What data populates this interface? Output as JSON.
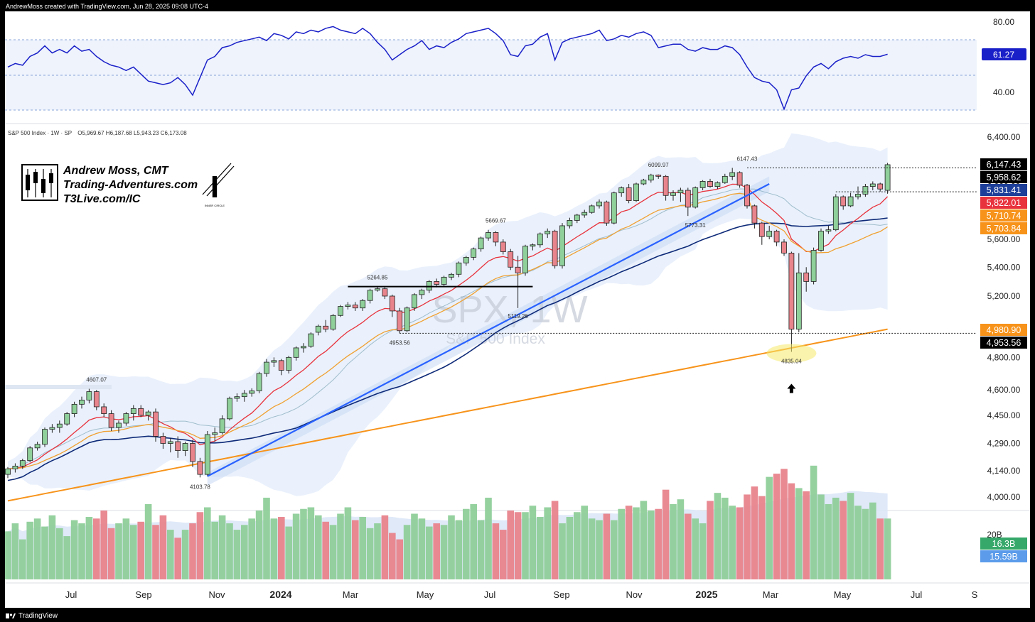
{
  "header": {
    "credit": "AndrewMoss created with TradingView.com, Jun 28, 2025 09:08 UTC-4"
  },
  "footer": {
    "brand": "TradingView"
  },
  "branding": {
    "name": "Andrew Moss, CMT",
    "site": "Trading-Adventures.com",
    "link": "T3Live.com/IC",
    "logo_caption": "INNER CIRCLE"
  },
  "symbol": {
    "ticker_watermark": "SPX, 1W",
    "name_watermark": "S&P 500 Index",
    "legend": "S&P 500 Index · 1W · SP",
    "ohlc": "O5,969.67  H6,187.68  L5,943.23  C6,173.08"
  },
  "colors": {
    "up": "#8fcf9a",
    "down": "#e8848c",
    "rsi_line": "#1a20c8",
    "ema_red": "#e8323c",
    "ema_orange": "#f0a030",
    "sma_navy": "#0e2a78",
    "sma200": "#f7931a",
    "trend": "#2962ff"
  },
  "chart_data": {
    "type": "candlestick",
    "timeframe": "1W",
    "price_axis": {
      "ticks": [
        "6,400.00",
        "6,000.00",
        "5,600.00",
        "5,400.00",
        "5,200.00",
        "4,800.00",
        "4,600.00",
        "4,450.00",
        "4,290.00",
        "4,140.00",
        "4,000.00"
      ],
      "scale": "log",
      "range": [
        3960,
        6500
      ]
    },
    "rsi_axis": {
      "ticks": [
        "80.00",
        "40.00"
      ],
      "range": [
        25,
        85
      ],
      "value": "61.27"
    },
    "volume_axis": {
      "ticks": [
        "20B"
      ]
    },
    "time_axis": [
      "Jul",
      "Sep",
      "Nov",
      "2024",
      "Mar",
      "May",
      "Jul",
      "Sep",
      "Nov",
      "2025",
      "Mar",
      "May",
      "Jul",
      "S"
    ],
    "bold_labels": [
      "2024",
      "2025"
    ],
    "price_labels": [
      {
        "text": "6,147.43",
        "bg": "#000000"
      },
      {
        "text": "5,958.62",
        "bg": "#000000"
      },
      {
        "text": "5,831.41",
        "bg": "#1d3f9a"
      },
      {
        "text": "5,822.01",
        "bg": "#e8323c"
      },
      {
        "text": "5,710.74",
        "bg": "#f7931a"
      },
      {
        "text": "5,703.84",
        "bg": "#f7931a"
      },
      {
        "text": "4,980.90",
        "bg": "#f7931a"
      },
      {
        "text": "4,953.56",
        "bg": "#000000"
      }
    ],
    "volume_labels": [
      {
        "text": "16.3B",
        "bg": "#36a86a"
      },
      {
        "text": "15.59B",
        "bg": "#5b9bea"
      }
    ],
    "annotations": [
      {
        "text": "4607.07",
        "value": 4607.07
      },
      {
        "text": "4103.78",
        "value": 4103.78
      },
      {
        "text": "5264.85",
        "value": 5264.85
      },
      {
        "text": "4953.56",
        "value": 4953.56
      },
      {
        "text": "5669.67",
        "value": 5669.67
      },
      {
        "text": "5119.26",
        "value": 5119.26
      },
      {
        "text": "6099.97",
        "value": 6099.97
      },
      {
        "text": "6147.43",
        "value": 6147.43
      },
      {
        "text": "5773.31",
        "value": 5773.31
      },
      {
        "text": "4835.04",
        "value": 4835.04
      }
    ],
    "candles": [
      [
        4120,
        4160,
        4100,
        4150
      ],
      [
        4150,
        4180,
        4130,
        4165
      ],
      [
        4165,
        4205,
        4150,
        4195
      ],
      [
        4195,
        4275,
        4185,
        4265
      ],
      [
        4265,
        4300,
        4250,
        4285
      ],
      [
        4285,
        4380,
        4270,
        4370
      ],
      [
        4370,
        4400,
        4350,
        4380
      ],
      [
        4380,
        4420,
        4350,
        4400
      ],
      [
        4400,
        4470,
        4390,
        4460
      ],
      [
        4460,
        4530,
        4440,
        4515
      ],
      [
        4515,
        4560,
        4490,
        4540
      ],
      [
        4540,
        4607.07,
        4520,
        4590
      ],
      [
        4590,
        4600,
        4480,
        4500
      ],
      [
        4500,
        4520,
        4440,
        4460
      ],
      [
        4460,
        4480,
        4360,
        4380
      ],
      [
        4380,
        4420,
        4350,
        4405
      ],
      [
        4405,
        4470,
        4390,
        4460
      ],
      [
        4460,
        4510,
        4420,
        4490
      ],
      [
        4490,
        4510,
        4440,
        4450
      ],
      [
        4450,
        4480,
        4420,
        4470
      ],
      [
        4470,
        4490,
        4300,
        4330
      ],
      [
        4330,
        4350,
        4260,
        4290
      ],
      [
        4290,
        4320,
        4240,
        4300
      ],
      [
        4300,
        4330,
        4210,
        4250
      ],
      [
        4250,
        4300,
        4220,
        4290
      ],
      [
        4290,
        4310,
        4160,
        4190
      ],
      [
        4190,
        4210,
        4103.78,
        4120
      ],
      [
        4120,
        4360,
        4110,
        4340
      ],
      [
        4340,
        4380,
        4300,
        4350
      ],
      [
        4350,
        4450,
        4340,
        4430
      ],
      [
        4430,
        4560,
        4420,
        4550
      ],
      [
        4550,
        4580,
        4530,
        4560
      ],
      [
        4560,
        4600,
        4530,
        4580
      ],
      [
        4580,
        4610,
        4560,
        4595
      ],
      [
        4595,
        4710,
        4580,
        4700
      ],
      [
        4700,
        4790,
        4680,
        4770
      ],
      [
        4770,
        4800,
        4740,
        4780
      ],
      [
        4780,
        4790,
        4690,
        4720
      ],
      [
        4720,
        4810,
        4700,
        4800
      ],
      [
        4800,
        4870,
        4780,
        4860
      ],
      [
        4860,
        4890,
        4830,
        4870
      ],
      [
        4870,
        4960,
        4860,
        4950
      ],
      [
        4960,
        5010,
        4940,
        5000
      ],
      [
        5000,
        5040,
        4960,
        4980
      ],
      [
        4980,
        5080,
        4970,
        5070
      ],
      [
        5070,
        5140,
        5060,
        5130
      ],
      [
        5130,
        5160,
        5110,
        5140
      ],
      [
        5140,
        5160,
        5100,
        5120
      ],
      [
        5120,
        5180,
        5100,
        5170
      ],
      [
        5170,
        5250,
        5150,
        5240
      ],
      [
        5240,
        5264.85,
        5230,
        5250
      ],
      [
        5250,
        5260,
        5180,
        5200
      ],
      [
        5200,
        5210,
        5060,
        5100
      ],
      [
        5100,
        5120,
        4953.56,
        4970
      ],
      [
        4970,
        5130,
        4960,
        5120
      ],
      [
        5120,
        5220,
        5100,
        5210
      ],
      [
        5210,
        5250,
        5180,
        5240
      ],
      [
        5240,
        5310,
        5220,
        5300
      ],
      [
        5300,
        5320,
        5260,
        5280
      ],
      [
        5280,
        5340,
        5270,
        5330
      ],
      [
        5330,
        5360,
        5310,
        5350
      ],
      [
        5350,
        5440,
        5330,
        5430
      ],
      [
        5430,
        5480,
        5410,
        5470
      ],
      [
        5470,
        5540,
        5450,
        5530
      ],
      [
        5530,
        5620,
        5510,
        5610
      ],
      [
        5610,
        5669.67,
        5590,
        5650
      ],
      [
        5650,
        5660,
        5550,
        5580
      ],
      [
        5580,
        5600,
        5490,
        5510
      ],
      [
        5510,
        5530,
        5380,
        5400
      ],
      [
        5400,
        5480,
        5119.26,
        5360
      ],
      [
        5360,
        5560,
        5340,
        5550
      ],
      [
        5550,
        5570,
        5520,
        5560
      ],
      [
        5560,
        5650,
        5540,
        5640
      ],
      [
        5640,
        5680,
        5610,
        5660
      ],
      [
        5660,
        5670,
        5390,
        5410
      ],
      [
        5410,
        5720,
        5390,
        5700
      ],
      [
        5700,
        5760,
        5680,
        5740
      ],
      [
        5740,
        5790,
        5720,
        5780
      ],
      [
        5780,
        5820,
        5760,
        5800
      ],
      [
        5800,
        5860,
        5790,
        5850
      ],
      [
        5850,
        5900,
        5830,
        5880
      ],
      [
        5880,
        5890,
        5700,
        5720
      ],
      [
        5720,
        5960,
        5710,
        5950
      ],
      [
        5950,
        6000,
        5920,
        5990
      ],
      [
        5990,
        6020,
        5870,
        5890
      ],
      [
        5890,
        6030,
        5880,
        6020
      ],
      [
        6020,
        6060,
        6010,
        6050
      ],
      [
        6050,
        6099.97,
        6030,
        6090
      ],
      [
        6090,
        6095,
        6060,
        6080
      ],
      [
        6080,
        6090,
        5890,
        5930
      ],
      [
        5930,
        5970,
        5890,
        5950
      ],
      [
        5950,
        5990,
        5880,
        5970
      ],
      [
        5970,
        5990,
        5773.31,
        5840
      ],
      [
        5840,
        6000,
        5830,
        5990
      ],
      [
        5990,
        6050,
        5970,
        6040
      ],
      [
        6040,
        6060,
        5990,
        6000
      ],
      [
        6000,
        6040,
        5980,
        6030
      ],
      [
        6030,
        6100,
        6020,
        6080
      ],
      [
        6080,
        6147.43,
        6050,
        6110
      ],
      [
        6110,
        6120,
        5990,
        6010
      ],
      [
        6010,
        6020,
        5830,
        5850
      ],
      [
        5850,
        5860,
        5680,
        5720
      ],
      [
        5720,
        5730,
        5560,
        5620
      ],
      [
        5620,
        5700,
        5600,
        5660
      ],
      [
        5660,
        5670,
        5550,
        5580
      ],
      [
        5580,
        5600,
        5480,
        5500
      ],
      [
        5500,
        5510,
        4835.04,
        4980
      ],
      [
        4980,
        5500,
        4960,
        5360
      ],
      [
        5360,
        5400,
        5230,
        5300
      ],
      [
        5300,
        5540,
        5280,
        5520
      ],
      [
        5520,
        5680,
        5510,
        5660
      ],
      [
        5660,
        5700,
        5640,
        5670
      ],
      [
        5670,
        5940,
        5660,
        5920
      ],
      [
        5920,
        5930,
        5820,
        5850
      ],
      [
        5850,
        5950,
        5840,
        5920
      ],
      [
        5920,
        6000,
        5900,
        5940
      ],
      [
        5940,
        6020,
        5920,
        6000
      ],
      [
        6000,
        6040,
        5970,
        6020
      ],
      [
        6020,
        6030,
        5960,
        5980
      ],
      [
        5969.67,
        6187.68,
        5943.23,
        6173.08
      ]
    ],
    "volume": [
      15.5,
      16.0,
      15.0,
      16.1,
      16.3,
      15.8,
      16.5,
      15.7,
      15.2,
      16.2,
      16.0,
      16.4,
      16.3,
      16.8,
      15.7,
      16.0,
      16.3,
      15.9,
      16.1,
      17.2,
      15.9,
      16.5,
      15.6,
      15.1,
      15.6,
      16.0,
      16.7,
      17.0,
      16.1,
      16.5,
      16.0,
      15.6,
      15.9,
      16.3,
      16.8,
      17.6,
      16.3,
      16.4,
      15.8,
      16.6,
      16.9,
      17.0,
      16.5,
      16.1,
      15.9,
      16.6,
      17.0,
      16.2,
      16.4,
      15.7,
      16.0,
      16.5,
      15.4,
      15.0,
      15.9,
      16.6,
      16.3,
      15.8,
      16.0,
      15.9,
      16.5,
      16.2,
      16.9,
      17.2,
      16.2,
      17.6,
      16.0,
      15.6,
      16.8,
      16.7,
      16.7,
      17.1,
      16.4,
      17.0,
      17.4,
      16.0,
      16.4,
      16.7,
      17.1,
      16.3,
      16.2,
      16.6,
      16.2,
      16.9,
      17.1,
      17.0,
      17.4,
      16.8,
      16.9,
      18.1,
      17.2,
      17.5,
      16.6,
      16.3,
      16.0,
      17.4,
      17.9,
      17.6,
      17.1,
      17.0,
      17.8,
      18.3,
      17.7,
      18.9,
      19.1,
      19.4,
      18.5,
      18.2,
      18.0,
      19.6,
      17.8,
      17.2,
      17.6,
      17.4,
      17.9,
      17.1,
      16.9,
      17.3,
      16.3,
      16.3
    ],
    "rsi": [
      54,
      56,
      55,
      60,
      62,
      66,
      62,
      64,
      62,
      66,
      63,
      64,
      60,
      57,
      55,
      54,
      52,
      54,
      50,
      46,
      45,
      44,
      45,
      48,
      44,
      38,
      48,
      58,
      60,
      65,
      66,
      68,
      69,
      70,
      71,
      69,
      73,
      72,
      70,
      74,
      73,
      75,
      74,
      76,
      77,
      75,
      74,
      73,
      76,
      73,
      68,
      64,
      58,
      61,
      64,
      66,
      69,
      64,
      66,
      65,
      68,
      70,
      73,
      74,
      75,
      76,
      73,
      69,
      61,
      60,
      66,
      67,
      71,
      73,
      58,
      68,
      70,
      71,
      72,
      73,
      75,
      69,
      70,
      72,
      71,
      73,
      74,
      72,
      65,
      66,
      67,
      67,
      64,
      63,
      65,
      64,
      64,
      66,
      65,
      61,
      54,
      48,
      46,
      45,
      41,
      30,
      41,
      42,
      49,
      54,
      56,
      53,
      57,
      59,
      60,
      59,
      61,
      60,
      60,
      61.27
    ]
  }
}
